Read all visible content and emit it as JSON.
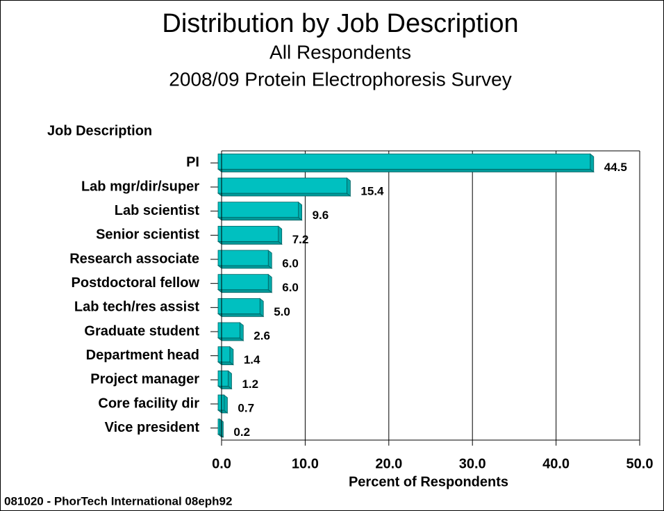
{
  "chart_data": {
    "type": "barh",
    "title": "Distribution by Job Description",
    "subtitle": [
      "All Respondents",
      "2008/09 Protein Electrophoresis Survey"
    ],
    "y_axis_label": "Job Description",
    "x_axis_label": "Percent of Respondents",
    "footer": "081020 - PhorTech International 08eph92",
    "categories": [
      "PI",
      "Lab mgr/dir/super",
      "Lab scientist",
      "Senior scientist",
      "Research associate",
      "Postdoctoral fellow",
      "Lab tech/res assist",
      "Graduate student",
      "Department head",
      "Project manager",
      "Core facility dir",
      "Vice president"
    ],
    "values": [
      44.5,
      15.4,
      9.6,
      7.2,
      6.0,
      6.0,
      5.0,
      2.6,
      1.4,
      1.2,
      0.7,
      0.2
    ],
    "value_labels": [
      "44.5",
      "15.4",
      "9.6",
      "7.2",
      "6.0",
      "6.0",
      "5.0",
      "2.6",
      "1.4",
      "1.2",
      "0.7",
      "0.2"
    ],
    "color": "#00c0c0",
    "xlim": [
      0,
      50
    ],
    "xticks": [
      {
        "value": 0,
        "label": "0.0"
      },
      {
        "value": 10,
        "label": "10.0"
      },
      {
        "value": 20,
        "label": "20.0"
      },
      {
        "value": 30,
        "label": "30.0"
      },
      {
        "value": 40,
        "label": "40.0"
      },
      {
        "value": 50,
        "label": "50.0"
      }
    ],
    "grid": true
  }
}
